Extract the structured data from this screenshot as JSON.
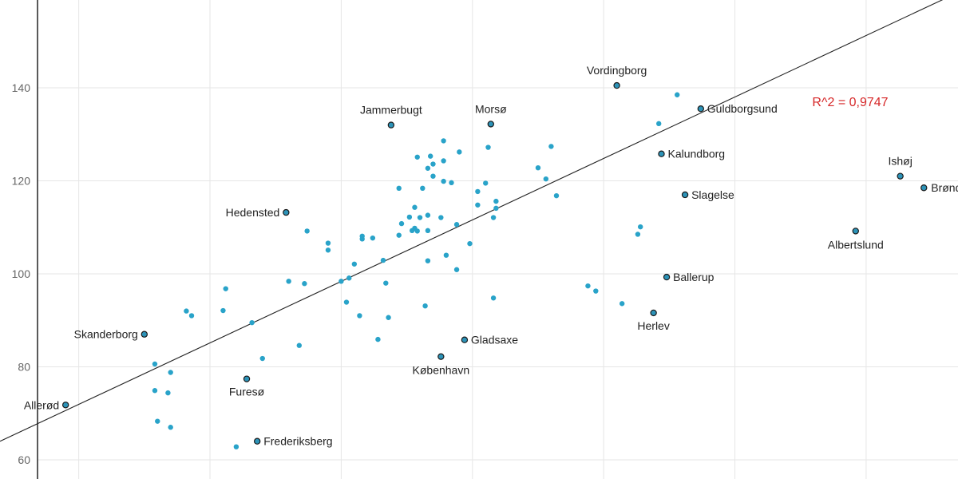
{
  "chart_data": {
    "type": "scatter",
    "title": "",
    "xlabel": "",
    "ylabel": "",
    "x_range": [
      -0.05,
      3.6
    ],
    "ylim": [
      57,
      161
    ],
    "y_ticks": [
      60,
      80,
      100,
      120,
      140
    ],
    "x_gridlines": [
      0.25,
      0.75,
      1.25,
      1.75,
      2.25,
      2.75,
      3.25
    ],
    "grid": true,
    "point_color": "#29a3c9",
    "highlight_color": "#2c93b8",
    "line_color": "#222222",
    "annotation_color": "#d62728",
    "r_squared_label": "R^2 = 0,9747",
    "trendline": {
      "x": [
        -0.05,
        3.6
      ],
      "y": [
        64.0,
        160.5
      ]
    },
    "highlighted": [
      {
        "name": "Vordingborg",
        "x": 2.3,
        "y": 140.5
      },
      {
        "name": "Guldborgsund",
        "x": 2.62,
        "y": 135.5
      },
      {
        "name": "Jammerbugt",
        "x": 1.44,
        "y": 132
      },
      {
        "name": "Morsø",
        "x": 1.82,
        "y": 132.2
      },
      {
        "name": "Kalundborg",
        "x": 2.47,
        "y": 125.8
      },
      {
        "name": "Ishøj",
        "x": 3.38,
        "y": 121
      },
      {
        "name": "Brøndby",
        "x": 3.47,
        "y": 118.5
      },
      {
        "name": "Slagelse",
        "x": 2.56,
        "y": 117
      },
      {
        "name": "Hedensted",
        "x": 1.04,
        "y": 113.2
      },
      {
        "name": "Albertslund",
        "x": 3.21,
        "y": 109.2
      },
      {
        "name": "Ballerup",
        "x": 2.49,
        "y": 99.3
      },
      {
        "name": "Herlev",
        "x": 2.44,
        "y": 91.6
      },
      {
        "name": "Skanderborg",
        "x": 0.5,
        "y": 87
      },
      {
        "name": "Gladsaxe",
        "x": 1.72,
        "y": 85.8
      },
      {
        "name": "København",
        "x": 1.63,
        "y": 82.2
      },
      {
        "name": "Furesø",
        "x": 0.89,
        "y": 77.4
      },
      {
        "name": "Allerød",
        "x": 0.2,
        "y": 71.8
      },
      {
        "name": "Frederiksberg",
        "x": 0.93,
        "y": 64
      }
    ],
    "points": [
      {
        "x": 2.53,
        "y": 138.5
      },
      {
        "x": 2.46,
        "y": 132.3
      },
      {
        "x": 1.64,
        "y": 128.6
      },
      {
        "x": 1.81,
        "y": 127.2
      },
      {
        "x": 2.05,
        "y": 127.4
      },
      {
        "x": 1.7,
        "y": 126.2
      },
      {
        "x": 1.54,
        "y": 125.1
      },
      {
        "x": 1.59,
        "y": 125.3
      },
      {
        "x": 1.64,
        "y": 124.3
      },
      {
        "x": 1.6,
        "y": 123.6
      },
      {
        "x": 1.58,
        "y": 122.7
      },
      {
        "x": 2.0,
        "y": 122.8
      },
      {
        "x": 1.6,
        "y": 121
      },
      {
        "x": 1.64,
        "y": 119.9
      },
      {
        "x": 1.67,
        "y": 119.6
      },
      {
        "x": 1.8,
        "y": 119.5
      },
      {
        "x": 2.03,
        "y": 120.4
      },
      {
        "x": 1.56,
        "y": 118.4
      },
      {
        "x": 1.47,
        "y": 118.4
      },
      {
        "x": 1.77,
        "y": 117.7
      },
      {
        "x": 2.07,
        "y": 116.8
      },
      {
        "x": 1.84,
        "y": 115.6
      },
      {
        "x": 1.77,
        "y": 114.8
      },
      {
        "x": 1.84,
        "y": 114.1
      },
      {
        "x": 1.53,
        "y": 114.3
      },
      {
        "x": 1.58,
        "y": 112.6
      },
      {
        "x": 1.63,
        "y": 112.1
      },
      {
        "x": 1.51,
        "y": 112.2
      },
      {
        "x": 1.55,
        "y": 112.1
      },
      {
        "x": 1.83,
        "y": 112.1
      },
      {
        "x": 1.48,
        "y": 110.8
      },
      {
        "x": 1.69,
        "y": 110.6
      },
      {
        "x": 2.39,
        "y": 110.1
      },
      {
        "x": 1.53,
        "y": 109.8
      },
      {
        "x": 1.54,
        "y": 109.2
      },
      {
        "x": 1.52,
        "y": 109.3
      },
      {
        "x": 1.58,
        "y": 109.3
      },
      {
        "x": 1.12,
        "y": 109.2
      },
      {
        "x": 1.47,
        "y": 108.3
      },
      {
        "x": 1.33,
        "y": 108.1
      },
      {
        "x": 1.37,
        "y": 107.7
      },
      {
        "x": 2.38,
        "y": 108.5
      },
      {
        "x": 1.33,
        "y": 107.5
      },
      {
        "x": 1.2,
        "y": 106.6
      },
      {
        "x": 1.74,
        "y": 106.5
      },
      {
        "x": 1.2,
        "y": 105.1
      },
      {
        "x": 1.65,
        "y": 104
      },
      {
        "x": 1.41,
        "y": 102.9
      },
      {
        "x": 1.58,
        "y": 102.8
      },
      {
        "x": 1.3,
        "y": 102.1
      },
      {
        "x": 1.69,
        "y": 100.9
      },
      {
        "x": 1.28,
        "y": 99.1
      },
      {
        "x": 1.25,
        "y": 98.4
      },
      {
        "x": 1.05,
        "y": 98.4
      },
      {
        "x": 1.11,
        "y": 97.9
      },
      {
        "x": 1.42,
        "y": 98.0
      },
      {
        "x": 2.19,
        "y": 97.4
      },
      {
        "x": 2.22,
        "y": 96.3
      },
      {
        "x": 0.81,
        "y": 96.8
      },
      {
        "x": 1.83,
        "y": 94.8
      },
      {
        "x": 1.27,
        "y": 93.9
      },
      {
        "x": 2.32,
        "y": 93.6
      },
      {
        "x": 1.57,
        "y": 93.1
      },
      {
        "x": 0.66,
        "y": 92
      },
      {
        "x": 0.8,
        "y": 92.1
      },
      {
        "x": 0.68,
        "y": 91.0
      },
      {
        "x": 1.32,
        "y": 91.0
      },
      {
        "x": 1.43,
        "y": 90.6
      },
      {
        "x": 0.91,
        "y": 89.5
      },
      {
        "x": 1.39,
        "y": 85.9
      },
      {
        "x": 1.09,
        "y": 84.6
      },
      {
        "x": 0.95,
        "y": 81.8
      },
      {
        "x": 0.54,
        "y": 80.6
      },
      {
        "x": 0.6,
        "y": 78.8
      },
      {
        "x": 0.54,
        "y": 74.9
      },
      {
        "x": 0.59,
        "y": 74.4
      },
      {
        "x": 0.55,
        "y": 68.3
      },
      {
        "x": 0.6,
        "y": 67.0
      },
      {
        "x": 0.85,
        "y": 62.8
      }
    ]
  }
}
